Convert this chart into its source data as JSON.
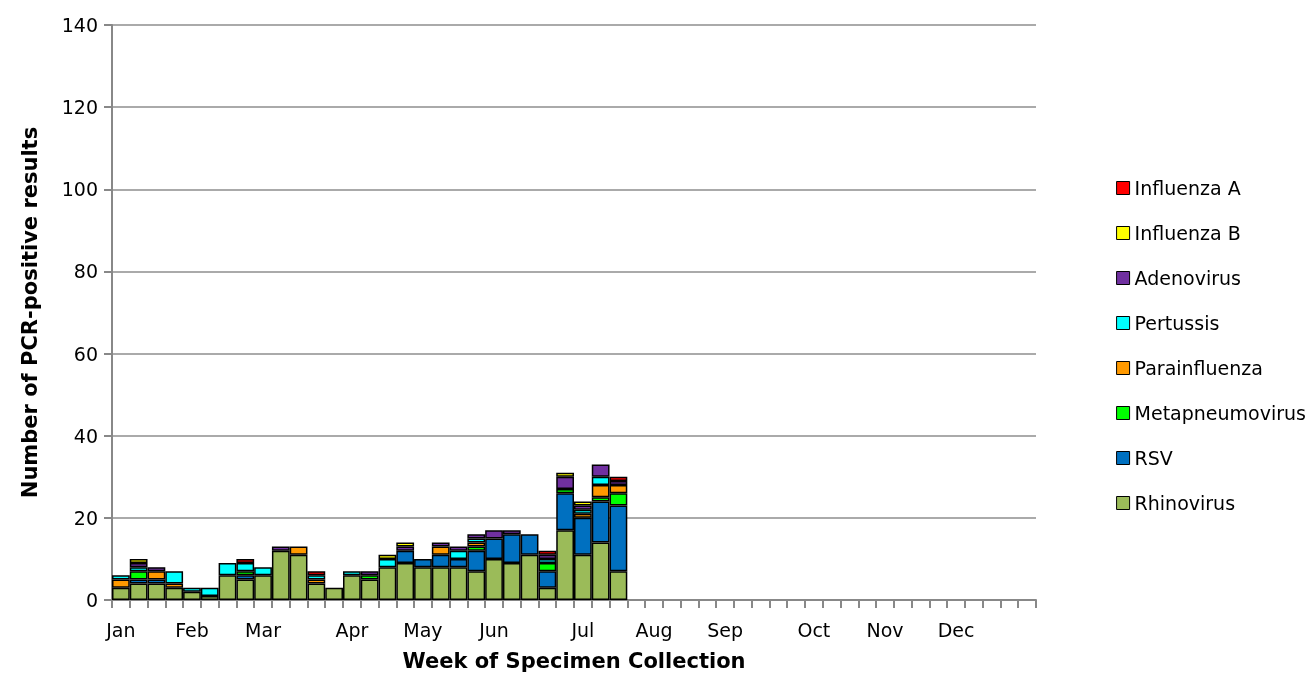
{
  "chart_data": {
    "type": "bar",
    "stacked": true,
    "xlabel": "Week of Specimen Collection",
    "ylabel": "Number of PCR-positive results",
    "categories": [
      "Jan",
      null,
      null,
      null,
      "Feb",
      null,
      null,
      null,
      "Mar",
      null,
      null,
      null,
      null,
      "Apr",
      null,
      null,
      null,
      "May",
      null,
      null,
      null,
      "Jun",
      null,
      null,
      null,
      null,
      "Jul",
      null,
      null,
      null,
      "Aug",
      null,
      null,
      null,
      "Sep",
      null,
      null,
      null,
      null,
      "Oct",
      null,
      null,
      null,
      "Nov",
      null,
      null,
      null,
      "Dec",
      null,
      null,
      null,
      null
    ],
    "series": [
      {
        "name": "Rhinovirus",
        "color": "#9bbb59",
        "values": [
          3,
          4,
          4,
          3,
          2,
          1,
          6,
          5,
          6,
          12,
          11,
          4,
          3,
          6,
          5,
          8,
          9,
          8,
          8,
          8,
          7,
          10,
          9,
          11,
          3,
          17,
          11,
          14,
          7,
          0,
          0,
          0,
          0,
          0,
          0,
          0,
          0,
          0,
          0,
          0,
          0,
          0,
          0,
          0,
          0,
          0,
          0,
          0,
          0,
          0,
          0,
          0
        ]
      },
      {
        "name": "RSV",
        "color": "#0070c0",
        "values": [
          0,
          1,
          1,
          0,
          0,
          0,
          0,
          1,
          0,
          0,
          0,
          0,
          0,
          0,
          0,
          0,
          3,
          2,
          3,
          2,
          5,
          5,
          7,
          5,
          4,
          9,
          9,
          10,
          16,
          0,
          0,
          0,
          0,
          0,
          0,
          0,
          0,
          0,
          0,
          0,
          0,
          0,
          0,
          0,
          0,
          0,
          0,
          0,
          0,
          0,
          0,
          0
        ]
      },
      {
        "name": "Metapneumovirus",
        "color": "#00ff00",
        "values": [
          0,
          2,
          0,
          0,
          0,
          0,
          0,
          1,
          0,
          0,
          0,
          0,
          0,
          0,
          1,
          0,
          0,
          0,
          0,
          0,
          1,
          0,
          0,
          0,
          2,
          1,
          0,
          1,
          3,
          0,
          0,
          0,
          0,
          0,
          0,
          0,
          0,
          0,
          0,
          0,
          0,
          0,
          0,
          0,
          0,
          0,
          0,
          0,
          0,
          0,
          0,
          0
        ]
      },
      {
        "name": "Parainfluenza",
        "color": "#ff9900",
        "values": [
          2,
          0,
          2,
          1,
          0,
          0,
          0,
          0,
          0,
          0,
          2,
          1,
          0,
          0,
          0,
          0,
          0,
          0,
          2,
          0,
          1,
          0,
          0,
          0,
          0,
          0,
          1,
          3,
          2,
          0,
          0,
          0,
          0,
          0,
          0,
          0,
          0,
          0,
          0,
          0,
          0,
          0,
          0,
          0,
          0,
          0,
          0,
          0,
          0,
          0,
          0,
          0
        ]
      },
      {
        "name": "Pertussis",
        "color": "#00ffff",
        "values": [
          1,
          1,
          0,
          3,
          1,
          2,
          3,
          2,
          2,
          0,
          0,
          1,
          0,
          1,
          0,
          2,
          0,
          0,
          0,
          2,
          1,
          0,
          0,
          0,
          1,
          0,
          1,
          2,
          0,
          0,
          0,
          0,
          0,
          0,
          0,
          0,
          0,
          0,
          0,
          0,
          0,
          0,
          0,
          0,
          0,
          0,
          0,
          0,
          0,
          0,
          0,
          0
        ]
      },
      {
        "name": "Adenovirus",
        "color": "#7030a0",
        "values": [
          0,
          1,
          1,
          0,
          0,
          0,
          0,
          0,
          0,
          1,
          0,
          0,
          0,
          0,
          1,
          0,
          1,
          0,
          1,
          1,
          1,
          2,
          1,
          0,
          1,
          3,
          1,
          3,
          1,
          0,
          0,
          0,
          0,
          0,
          0,
          0,
          0,
          0,
          0,
          0,
          0,
          0,
          0,
          0,
          0,
          0,
          0,
          0,
          0,
          0,
          0,
          0
        ]
      },
      {
        "name": "Influenza B",
        "color": "#ffff00",
        "values": [
          0,
          1,
          0,
          0,
          0,
          0,
          0,
          0,
          0,
          0,
          0,
          0,
          0,
          0,
          0,
          1,
          1,
          0,
          0,
          0,
          0,
          0,
          0,
          0,
          0,
          1,
          1,
          0,
          0,
          0,
          0,
          0,
          0,
          0,
          0,
          0,
          0,
          0,
          0,
          0,
          0,
          0,
          0,
          0,
          0,
          0,
          0,
          0,
          0,
          0,
          0,
          0
        ]
      },
      {
        "name": "Influenza A",
        "color": "#ff0000",
        "values": [
          0,
          0,
          0,
          0,
          0,
          0,
          0,
          1,
          0,
          0,
          0,
          1,
          0,
          0,
          0,
          0,
          0,
          0,
          0,
          0,
          0,
          0,
          0,
          0,
          1,
          0,
          0,
          0,
          1,
          0,
          0,
          0,
          0,
          0,
          0,
          0,
          0,
          0,
          0,
          0,
          0,
          0,
          0,
          0,
          0,
          0,
          0,
          0,
          0,
          0,
          0,
          0
        ]
      }
    ],
    "ylim": [
      0,
      140
    ],
    "yticks": [
      0,
      20,
      40,
      60,
      80,
      100,
      120,
      140
    ],
    "grid": "y",
    "legend": "right"
  }
}
